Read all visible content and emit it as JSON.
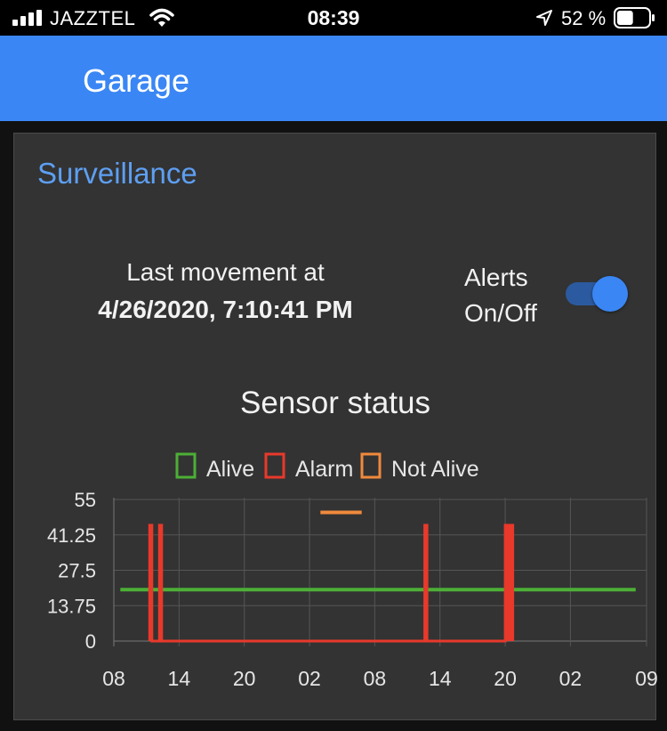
{
  "status_bar": {
    "carrier": "JAZZTEL",
    "time": "08:39",
    "battery_pct": "52 %",
    "icons": [
      "signal-icon",
      "wifi-icon",
      "location-arrow-icon",
      "battery-icon"
    ],
    "battery_level": 0.52
  },
  "app_bar": {
    "title": "Garage",
    "color": "#3a86f4"
  },
  "card": {
    "title": "Surveillance",
    "last_movement_label": "Last movement at",
    "last_movement_value": "4/26/2020, 7:10:41 PM",
    "alerts_line1": "Alerts",
    "alerts_line2": "On/Off",
    "alerts_enabled": true
  },
  "chart_data": {
    "type": "line",
    "title": "Sensor status",
    "xlabel": "",
    "ylabel": "",
    "legend_position": "top",
    "grid": true,
    "y_ticks": [
      "55",
      "41.25",
      "27.5",
      "13.75",
      "0"
    ],
    "ylim": [
      0,
      55
    ],
    "x_ticks": [
      "08",
      "14",
      "20",
      "02",
      "08",
      "14",
      "20",
      "02",
      "09"
    ],
    "x_range_hours": [
      0,
      49
    ],
    "series": [
      {
        "name": "Alive",
        "color": "#4caf36",
        "points": [
          [
            0.6,
            20
          ],
          [
            48.0,
            20
          ]
        ]
      },
      {
        "name": "Alarm",
        "color": "#e8392b",
        "points": [
          [
            3.3,
            0
          ],
          [
            3.3,
            45
          ],
          [
            3.5,
            45
          ],
          [
            3.5,
            0
          ],
          [
            4.2,
            0
          ],
          [
            4.2,
            45
          ],
          [
            4.4,
            45
          ],
          [
            4.4,
            0
          ],
          [
            28.6,
            0
          ],
          [
            28.6,
            45
          ],
          [
            28.8,
            45
          ],
          [
            28.8,
            0
          ],
          [
            36.0,
            0
          ],
          [
            36.0,
            45
          ],
          [
            36.7,
            45
          ],
          [
            36.7,
            0
          ]
        ]
      },
      {
        "name": "Not Alive",
        "color": "#f08a3c",
        "points": [
          [
            19.0,
            50
          ],
          [
            22.8,
            50
          ]
        ]
      }
    ]
  }
}
